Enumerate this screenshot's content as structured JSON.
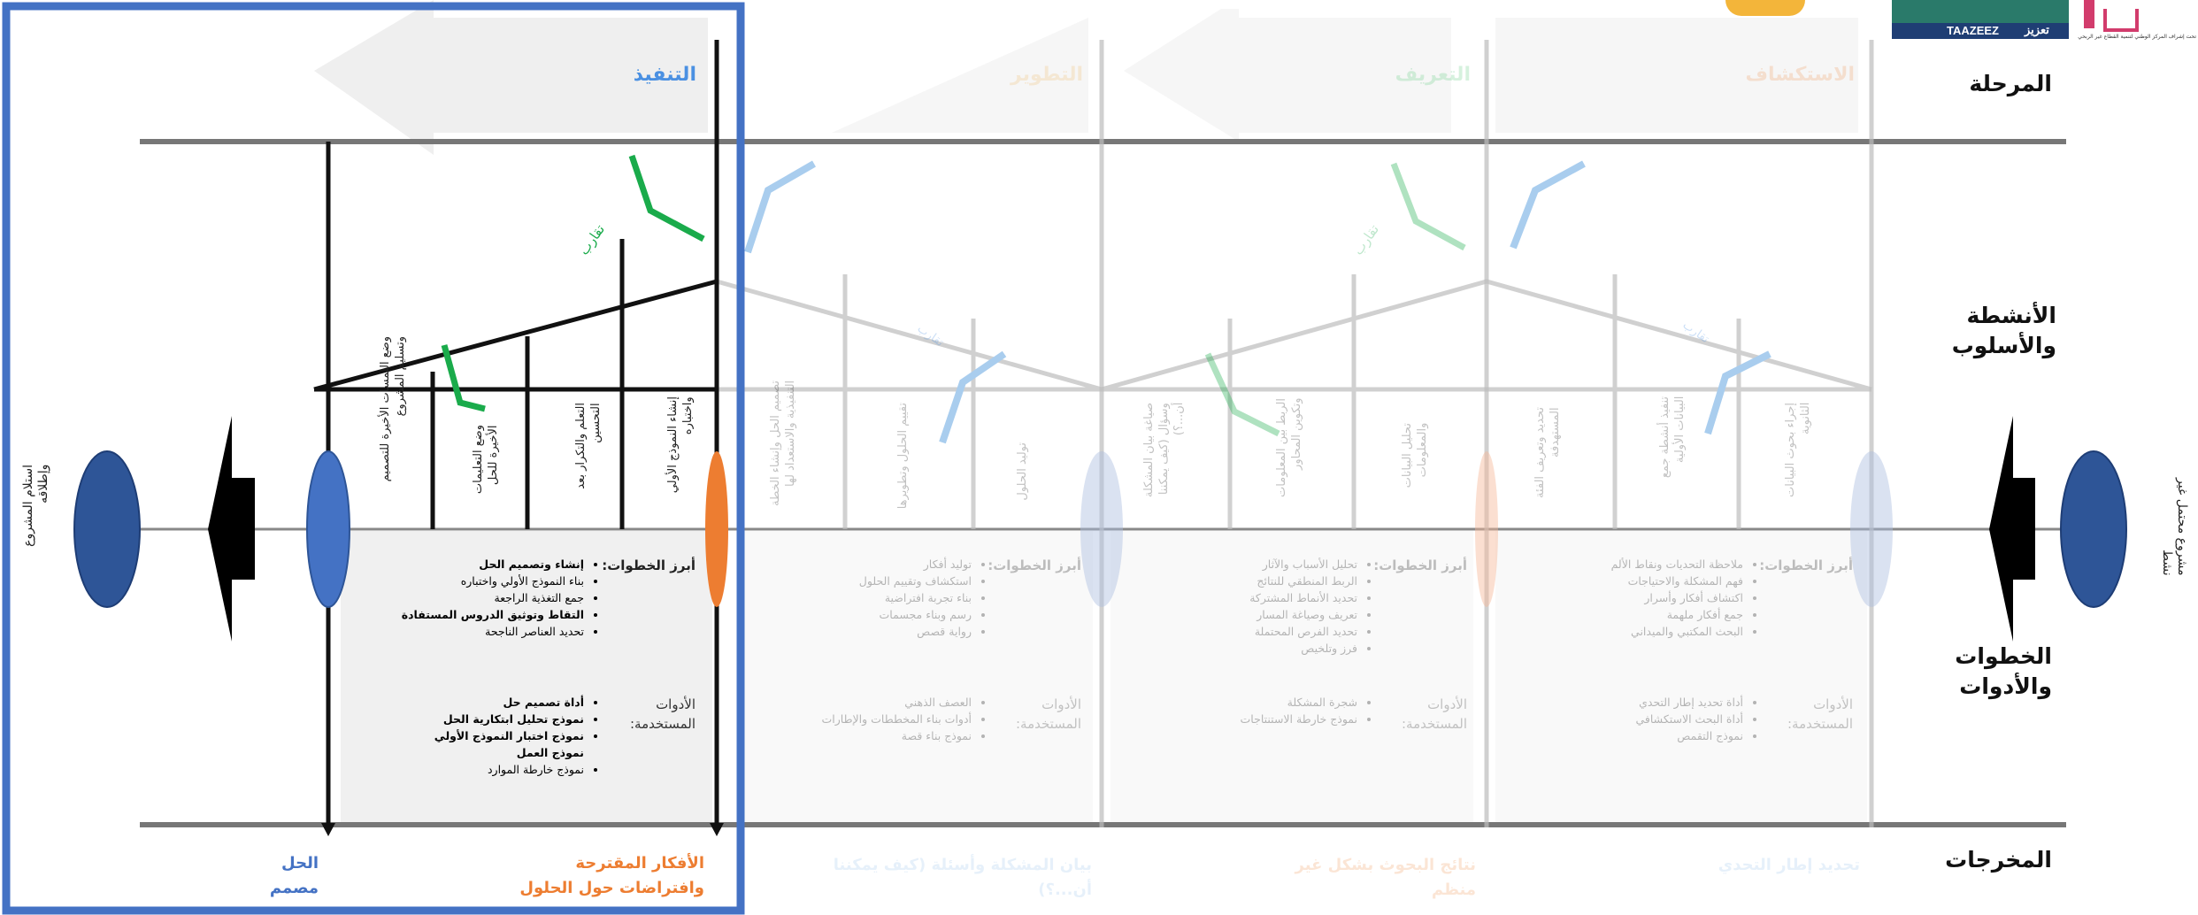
{
  "row_labels": {
    "phase": "المرحلة",
    "activities": "الأنشطة\nوالأسلوب",
    "steps_tools": "الخطوات\nوالأدوات",
    "outputs": "المخرجات"
  },
  "stages": [
    {
      "name": "الاستكشاف",
      "color": "#f2a46b"
    },
    {
      "name": "التعريف",
      "color": "#6ecf8a"
    },
    {
      "name": "التطوير",
      "color": "#f2c27a"
    },
    {
      "name": "التنفيذ",
      "color": "#4a90e2"
    }
  ],
  "endpoints": {
    "right": "مشروع محتمل غير\nنشط",
    "left": "استلام المشروع\nوإطلاقه"
  },
  "labels": {
    "divergence": "تقارب",
    "steps_title": "أبرز الخطوات:",
    "tools_title": "الأدوات\nالمستخدمة:"
  },
  "execution": {
    "activities": [
      "إنشاء النموذج الأولي\nواختباره",
      "التعلم والتكرار بعد\nالتحسين",
      "وضع التعليمات\nالأخيرة للحل",
      "وضع اللمسات الأخيرة للتصميم\nوتسليم المشروع"
    ],
    "steps": [
      "إنشاء وتصميم الحل",
      "بناء النموذج الأولي واختباره",
      "جمع التغذية الراجعة",
      "التقاط وتوثيق الدروس المستفادة",
      "تحديد العناصر الناجحة"
    ],
    "tools": [
      "أداة تصميم حل",
      "نموذج تحليل ابتكارية الحل",
      "نموذج اختبار النموذج الأولي",
      "نموذج العمل",
      "نموذج خارطة الموارد"
    ]
  },
  "development": {
    "activities": [
      "توليد الحلول",
      "تقييم الحلول وتطويرها",
      "تصميم الحل وإنشاء الخطة\nالتنفيذية والاستعداد لها"
    ],
    "steps": [
      "توليد أفكار",
      "استكشاف وتقييم الحلول",
      "بناء تجربة افتراضية",
      "رسم وبناء مجسمات",
      "رواية قصص"
    ],
    "tools": [
      "العصف الذهني",
      "أدوات بناء المخططات والإطارات",
      "نموذج بناء قصة"
    ]
  },
  "definition": {
    "activities": [
      "تحليل البيانات\nوالمعلومات",
      "الربط بين المعلومات\nوتكوين المحاور",
      "صياغة بيان المشكلة\nوسؤال (كيف يمكننا\nأن...؟)"
    ],
    "steps": [
      "تحليل الأسباب والآثار",
      "الربط المنطقي للنتائج",
      "تحديد الأنماط المشتركة",
      "تعريف وصياغة المسار",
      "تحديد الفرص المحتملة",
      "فرز وتلخيص"
    ],
    "tools": [
      "شجرة المشكلة",
      "نموذج خارطة الاستنتاجات"
    ]
  },
  "exploration": {
    "activities": [
      "إجراء بحوث البيانات\nالثانوية",
      "تنفيذ أنشطة جمع\nالبيانات الأولية",
      "تحديد وتعريف الفئة\nالمستهدفة"
    ],
    "steps": [
      "ملاحظة التحديات ونقاط الألم",
      "فهم المشكلة والاحتياجات",
      "اكتشاف أفكار وأسرار",
      "جمع أفكار ملهمة",
      "البحث المكتبي والميداني"
    ],
    "tools": [
      "أداة تحديد إطار التحدي",
      "أداة البحث الاستكشافي",
      "نموذج التقمص"
    ]
  },
  "outputs": {
    "exploration": "تحديد إطار التحدي",
    "definition": "نتائج البحوث بشكل غير\nمنظم",
    "development": "بيان المشكلة وأسئلة (كيف يمكننا\nأن...؟)",
    "execution": "الأفكار المقترحة\nوافتراضات حول الحلول",
    "solution": "الحل\nمصمم"
  },
  "logos": {
    "taazeez_ar": "تعزيز",
    "taazeez_en": "TAAZEEZ",
    "caption": "تحت إشراف المركز الوطني لتنمية القطاع غير الربحي"
  },
  "colors": {
    "highlight_box": "#4472c4",
    "execution_title": "#4a90e2",
    "orange": "#ed7d31",
    "navy": "#2f4f8f",
    "green_arrow": "#1aab4b",
    "blue_arrow": "#a9cdee",
    "output_execution": "#ed7d31",
    "output_solution": "#4472c4"
  }
}
